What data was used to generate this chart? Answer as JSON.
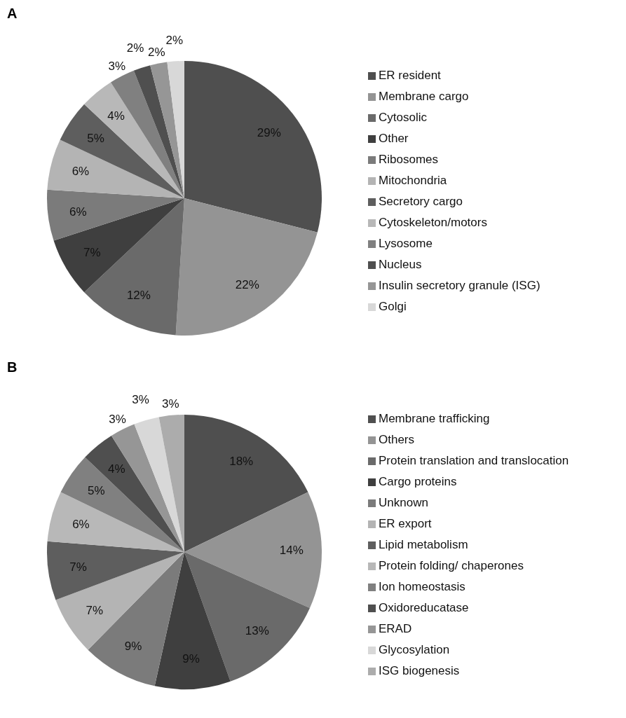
{
  "chart_data": [
    {
      "type": "pie",
      "title": "A",
      "legend": "right",
      "categories": [
        "ER resident",
        "Membrane cargo",
        "Cytosolic",
        "Other",
        "Ribosomes",
        "Mitochondria",
        "Secretory cargo",
        "Cytoskeleton/motors",
        "Lysosome",
        "Nucleus",
        "Insulin secretory granule (ISG)",
        "Golgi"
      ],
      "values": [
        29,
        22,
        12,
        7,
        6,
        6,
        5,
        4,
        3,
        2,
        2,
        2
      ],
      "value_labels": [
        "29%",
        "22%",
        "12%",
        "7%",
        "6%",
        "6%",
        "5%",
        "4%",
        "3%",
        "2%",
        "2%",
        "2%"
      ],
      "colors": [
        "#4f4f4f",
        "#949494",
        "#6a6a6a",
        "#3f3f3f",
        "#7b7b7b",
        "#b4b4b4",
        "#5e5e5e",
        "#b8b8b8",
        "#808080",
        "#4f4f4f",
        "#969696",
        "#d8d8d8"
      ]
    },
    {
      "type": "pie",
      "title": "B",
      "legend": "right",
      "categories": [
        "Membrane trafficking",
        "Others",
        "Protein translation and translocation",
        "Cargo proteins",
        "Unknown",
        "ER export",
        "Lipid metabolism",
        "Protein folding/ chaperones",
        "Ion homeostasis",
        "Oxidoreducatase",
        "ERAD",
        "Glycosylation",
        "ISG biogenesis"
      ],
      "values": [
        18,
        14,
        13,
        9,
        9,
        7,
        7,
        6,
        5,
        4,
        3,
        3,
        3
      ],
      "value_labels": [
        "18%",
        "14%",
        "13%",
        "9%",
        "9%",
        "7%",
        "7%",
        "6%",
        "5%",
        "4%",
        "3%",
        "3%",
        "3%"
      ],
      "colors": [
        "#4f4f4f",
        "#949494",
        "#6a6a6a",
        "#3f3f3f",
        "#7b7b7b",
        "#b4b4b4",
        "#5e5e5e",
        "#b8b8b8",
        "#808080",
        "#4f4f4f",
        "#969696",
        "#d8d8d8",
        "#acacac"
      ]
    }
  ]
}
